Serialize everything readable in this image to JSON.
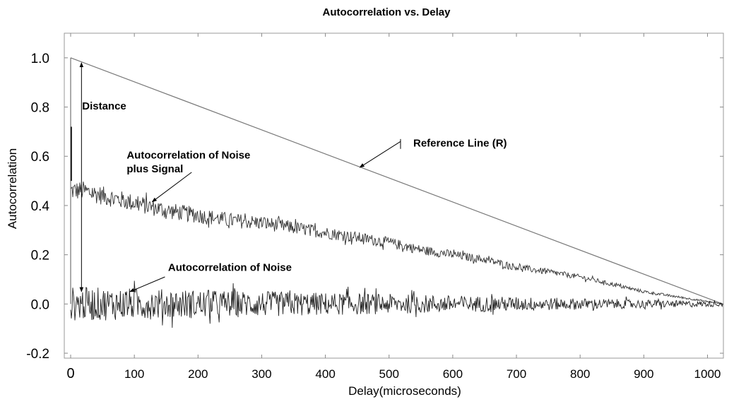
{
  "chart_data": {
    "type": "line",
    "title": "Autocorrelation vs. Delay",
    "xlabel": "Delay(microseconds)",
    "ylabel": "Autocorrelation",
    "xlim": [
      -10,
      1025
    ],
    "ylim": [
      -0.22,
      1.1
    ],
    "x_ticks": [
      0,
      100,
      200,
      300,
      400,
      500,
      600,
      700,
      800,
      900,
      1000
    ],
    "x_tick_labels": [
      "0",
      "100",
      "200",
      "300",
      "400",
      "500",
      "600",
      "700",
      "800",
      "900",
      "1000"
    ],
    "y_ticks": [
      1.0,
      0.8,
      0.6,
      0.4,
      0.2,
      0.0,
      -0.2
    ],
    "y_tick_labels": [
      "1.0",
      "0.8",
      "0.6",
      "0.4",
      "0.2",
      "0.0",
      "-0.2"
    ],
    "grid": false,
    "series": [
      {
        "name": "Reference Line (R)",
        "color": "#777777",
        "x": [
          0,
          1024
        ],
        "y": [
          1.0,
          0.0
        ]
      },
      {
        "name": "Autocorrelation of Noise plus Signal",
        "color": "#333333",
        "x": [
          0,
          20,
          50,
          100,
          150,
          200,
          250,
          300,
          350,
          400,
          450,
          500,
          550,
          600,
          650,
          700,
          750,
          800,
          850,
          900,
          950,
          1000,
          1024
        ],
        "y": [
          0.46,
          0.46,
          0.44,
          0.41,
          0.38,
          0.36,
          0.34,
          0.33,
          0.31,
          0.29,
          0.27,
          0.25,
          0.22,
          0.2,
          0.18,
          0.15,
          0.13,
          0.11,
          0.08,
          0.05,
          0.03,
          0.01,
          0.0
        ],
        "noise_amplitude": [
          0.04,
          0.002
        ]
      },
      {
        "name": "Autocorrelation of Noise",
        "color": "#222222",
        "x": [
          0,
          1024
        ],
        "y": [
          0.0,
          0.0
        ],
        "noise_amplitude": [
          0.07,
          0.01
        ]
      }
    ],
    "annotations": [
      {
        "text": "Distance",
        "x": 18,
        "y": 0.79
      },
      {
        "text": "Reference Line (R)",
        "x": 538,
        "y": 0.64
      },
      {
        "text": "Autocorrelation of Noise",
        "x": 88,
        "y": 0.59
      },
      {
        "text": "plus Signal",
        "x": 88,
        "y": 0.535
      },
      {
        "text": "Autocorrelation of  Noise",
        "x": 153,
        "y": 0.135
      }
    ],
    "arrows": [
      {
        "from": [
          518,
          0.66
        ],
        "to": [
          454,
          0.555
        ]
      },
      {
        "from": [
          190,
          0.535
        ],
        "to": [
          128,
          0.415
        ]
      },
      {
        "from": [
          148,
          0.11
        ],
        "to": [
          93,
          0.05
        ]
      }
    ],
    "double_arrow": {
      "x": 17,
      "y_top": 0.98,
      "y_bottom": 0.05
    }
  }
}
